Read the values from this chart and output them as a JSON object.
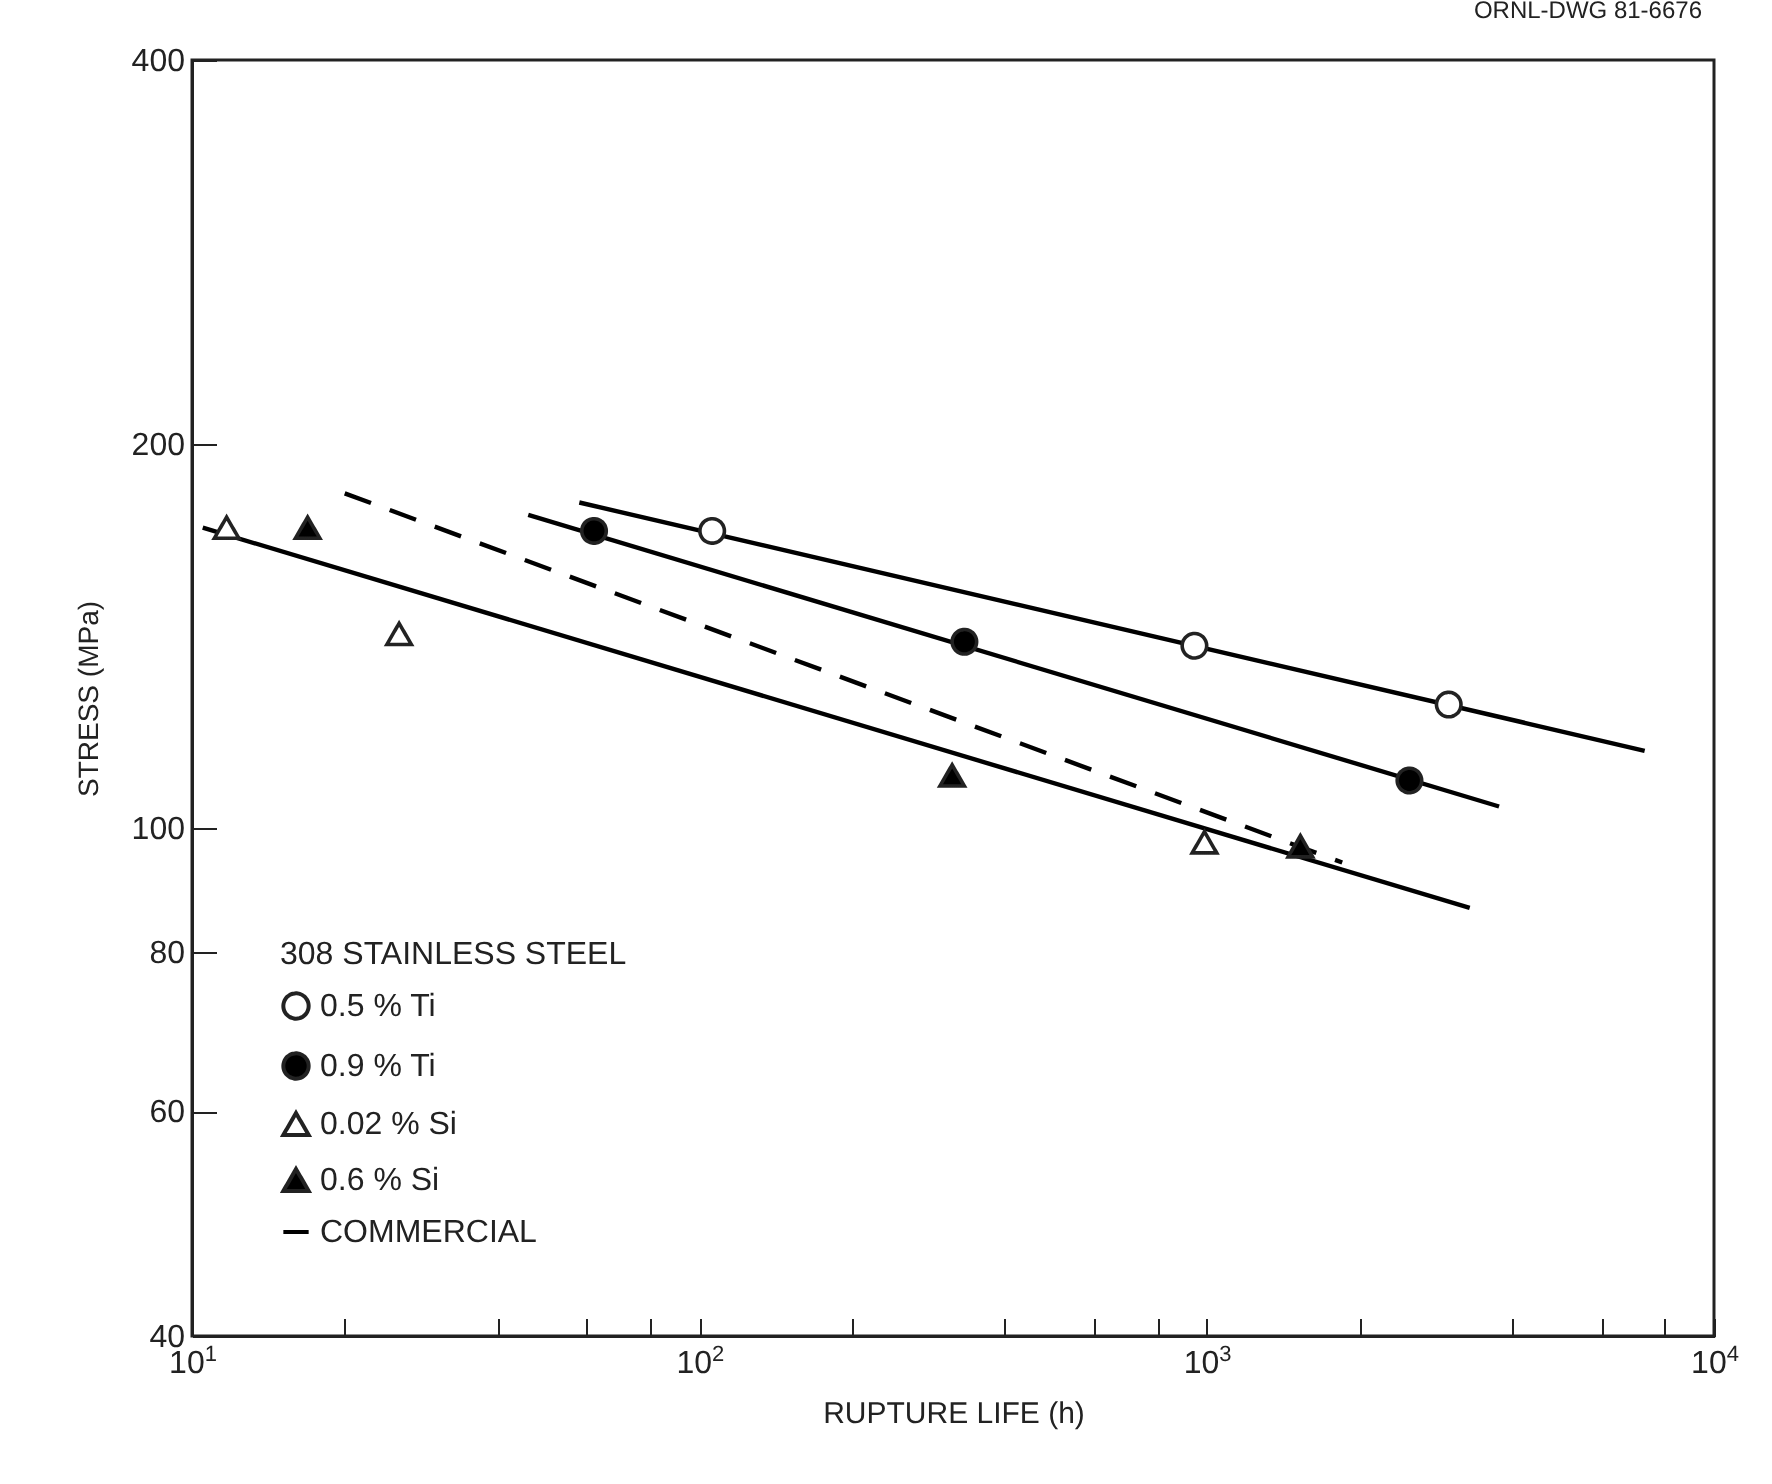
{
  "chart_data": {
    "type": "scatter",
    "xlabel": "RUPTURE LIFE (h)",
    "ylabel": "STRESS (MPa)",
    "legend_title": "308 STAINLESS STEEL",
    "annotations": [
      "ORNL-DWG 81-6676"
    ],
    "log": "xy",
    "legend": "bottom left",
    "xlim": [
      10,
      10000
    ],
    "ylim": [
      40,
      400
    ],
    "xticks": [
      {
        "value": 10,
        "label": "10$^{1}$"
      },
      {
        "value": 20,
        "label": null
      },
      {
        "value": 40,
        "label": null
      },
      {
        "value": 60,
        "label": null
      },
      {
        "value": 80,
        "label": null
      },
      {
        "value": 100,
        "label": "10$^{2}$"
      },
      {
        "value": 200,
        "label": null
      },
      {
        "value": 400,
        "label": null
      },
      {
        "value": 600,
        "label": null
      },
      {
        "value": 800,
        "label": null
      },
      {
        "value": 1000,
        "label": "10$^{3}$"
      },
      {
        "value": 2000,
        "label": null
      },
      {
        "value": 4000,
        "label": null
      },
      {
        "value": 6000,
        "label": null
      },
      {
        "value": 8000,
        "label": null
      },
      {
        "value": 10000,
        "label": "10$^{4}$"
      }
    ],
    "yticks": [
      40,
      60,
      80,
      100,
      200,
      400
    ],
    "series": [
      {
        "name": "0.5 % Ti",
        "marker": "circle",
        "color": "#ffffff",
        "x": [
          106,
          946,
          3000
        ],
        "values": [
          171,
          139,
          125
        ]
      },
      {
        "name": "0.9 % Ti",
        "marker": "circle",
        "color": "#000000",
        "x": [
          62,
          333,
          2510
        ],
        "values": [
          171,
          140,
          109
        ]
      },
      {
        "name": "0.02 % Si",
        "marker": "triangle",
        "color": "#ffffff",
        "x": [
          11.7,
          25.6,
          990
        ],
        "values": [
          172,
          142,
          97.5
        ]
      },
      {
        "name": "0.6 % Si",
        "marker": "triangle",
        "color": "#000000",
        "x": [
          16.9,
          315,
          1530
        ],
        "values": [
          172,
          110,
          96.8
        ]
      },
      {
        "name": "COMMERCIAL",
        "type": "line",
        "line_style": "dashed",
        "color": "#000000",
        "x": [
          20,
          1850
        ],
        "values": [
          183,
          94
        ]
      },
      {
        "type": "line",
        "line_style": "solid",
        "color": "#000000",
        "x": [
          58,
          7300
        ],
        "values": [
          180,
          115
        ]
      },
      {
        "type": "line",
        "line_style": "solid",
        "color": "#000000",
        "x": [
          46,
          3770
        ],
        "values": [
          176,
          104
        ]
      },
      {
        "type": "line",
        "line_style": "solid",
        "color": "#000000",
        "x": [
          10.5,
          3300
        ],
        "values": [
          172,
          86.6
        ]
      }
    ]
  }
}
